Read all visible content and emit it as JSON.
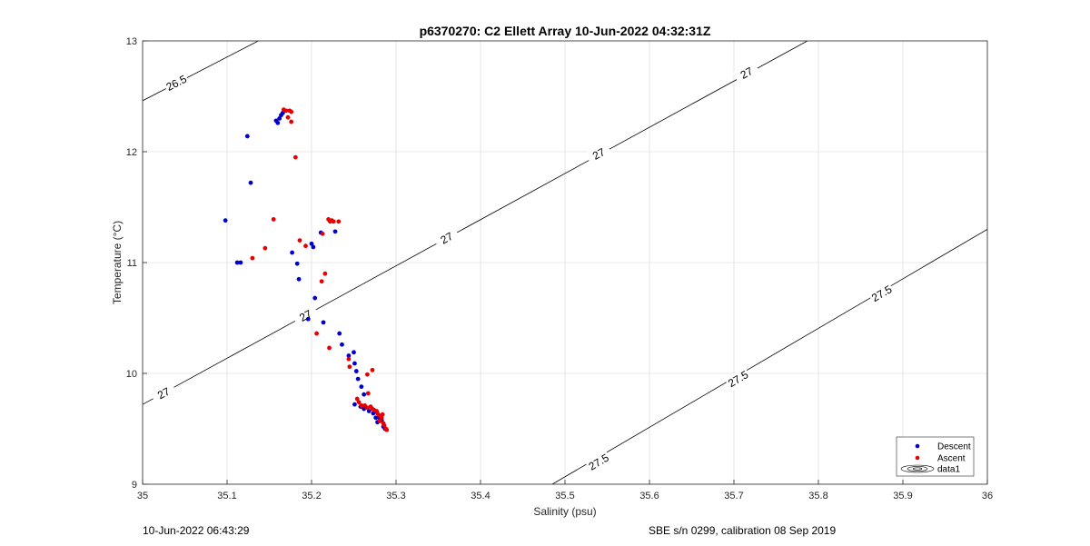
{
  "chart_data": {
    "type": "scatter",
    "title": "p6370270: C2 Ellett Array 10-Jun-2022 04:32:31Z",
    "xlabel": "Salinity (psu)",
    "ylabel": "Temperature (°C)",
    "xlim": [
      35,
      36
    ],
    "ylim": [
      9,
      13
    ],
    "xticks": [
      "35",
      "35.1",
      "35.2",
      "35.3",
      "35.4",
      "35.5",
      "35.6",
      "35.7",
      "35.8",
      "35.9",
      "36"
    ],
    "yticks": [
      "9",
      "10",
      "11",
      "12",
      "13"
    ],
    "grid": true,
    "legend_position": "bottom-right",
    "legend": [
      "Descent",
      "Ascent",
      "data1"
    ],
    "series": [
      {
        "name": "Descent",
        "color": "#0000cc",
        "points": [
          [
            35.098,
            11.38
          ],
          [
            35.112,
            11.0
          ],
          [
            35.116,
            11.0
          ],
          [
            35.124,
            12.14
          ],
          [
            35.128,
            11.72
          ],
          [
            35.158,
            12.28
          ],
          [
            35.16,
            12.26
          ],
          [
            35.162,
            12.3
          ],
          [
            35.164,
            12.33
          ],
          [
            35.166,
            12.35
          ],
          [
            35.177,
            11.09
          ],
          [
            35.183,
            10.99
          ],
          [
            35.185,
            10.85
          ],
          [
            35.196,
            10.49
          ],
          [
            35.2,
            11.17
          ],
          [
            35.202,
            11.14
          ],
          [
            35.204,
            10.68
          ],
          [
            35.211,
            11.27
          ],
          [
            35.214,
            10.46
          ],
          [
            35.228,
            11.28
          ],
          [
            35.233,
            10.36
          ],
          [
            35.236,
            10.26
          ],
          [
            35.244,
            10.16
          ],
          [
            35.25,
            10.19
          ],
          [
            35.251,
            10.09
          ],
          [
            35.253,
            10.02
          ],
          [
            35.255,
            9.95
          ],
          [
            35.259,
            9.88
          ],
          [
            35.262,
            9.81
          ],
          [
            35.251,
            9.72
          ],
          [
            35.258,
            9.7
          ],
          [
            35.262,
            9.68
          ],
          [
            35.268,
            9.66
          ],
          [
            35.273,
            9.64
          ],
          [
            35.276,
            9.6
          ],
          [
            35.278,
            9.56
          ],
          [
            35.28,
            9.6
          ],
          [
            35.283,
            9.58
          ],
          [
            35.285,
            9.52
          ],
          [
            35.287,
            9.5
          ]
        ]
      },
      {
        "name": "Ascent",
        "color": "#e60000",
        "points": [
          [
            35.13,
            11.04
          ],
          [
            35.145,
            11.13
          ],
          [
            35.155,
            11.39
          ],
          [
            35.167,
            12.38
          ],
          [
            35.17,
            12.37
          ],
          [
            35.172,
            12.31
          ],
          [
            35.174,
            12.37
          ],
          [
            35.176,
            12.36
          ],
          [
            35.176,
            12.27
          ],
          [
            35.181,
            11.95
          ],
          [
            35.186,
            11.2
          ],
          [
            35.193,
            11.15
          ],
          [
            35.206,
            10.36
          ],
          [
            35.212,
            10.83
          ],
          [
            35.213,
            11.26
          ],
          [
            35.216,
            10.9
          ],
          [
            35.22,
            11.39
          ],
          [
            35.222,
            11.37
          ],
          [
            35.224,
            11.38
          ],
          [
            35.226,
            11.37
          ],
          [
            35.232,
            11.37
          ],
          [
            35.221,
            10.23
          ],
          [
            35.244,
            10.13
          ],
          [
            35.245,
            10.06
          ],
          [
            35.266,
            9.99
          ],
          [
            35.272,
            10.03
          ],
          [
            35.267,
            9.82
          ],
          [
            35.254,
            9.77
          ],
          [
            35.256,
            9.74
          ],
          [
            35.259,
            9.71
          ],
          [
            35.263,
            9.71
          ],
          [
            35.266,
            9.69
          ],
          [
            35.27,
            9.7
          ],
          [
            35.272,
            9.68
          ],
          [
            35.274,
            9.67
          ],
          [
            35.277,
            9.66
          ],
          [
            35.278,
            9.64
          ],
          [
            35.28,
            9.62
          ],
          [
            35.281,
            9.57
          ],
          [
            35.283,
            9.6
          ],
          [
            35.284,
            9.63
          ],
          [
            35.285,
            9.55
          ],
          [
            35.286,
            9.53
          ],
          [
            35.288,
            9.5
          ],
          [
            35.289,
            9.49
          ]
        ]
      }
    ],
    "contours": [
      {
        "level": "26.5",
        "points": [
          [
            35.0,
            12.46
          ],
          [
            35.137,
            13.0
          ]
        ],
        "labels": [
          [
            35.04,
            12.62
          ]
        ]
      },
      {
        "level": "27",
        "points": [
          [
            35.0,
            9.72
          ],
          [
            35.787,
            13.0
          ]
        ],
        "labels": [
          [
            35.025,
            9.82
          ],
          [
            35.193,
            10.52
          ],
          [
            35.36,
            11.22
          ],
          [
            35.54,
            11.98
          ],
          [
            35.715,
            12.71
          ]
        ]
      },
      {
        "level": "27.5",
        "points": [
          [
            35.485,
            9.0
          ],
          [
            36.0,
            11.3
          ]
        ],
        "labels": [
          [
            35.54,
            9.2
          ],
          [
            35.705,
            9.95
          ],
          [
            35.875,
            10.72
          ]
        ]
      }
    ]
  },
  "footer": {
    "left": "10-Jun-2022 06:43:29",
    "right": "SBE s/n 0299, calibration 08 Sep 2019"
  }
}
